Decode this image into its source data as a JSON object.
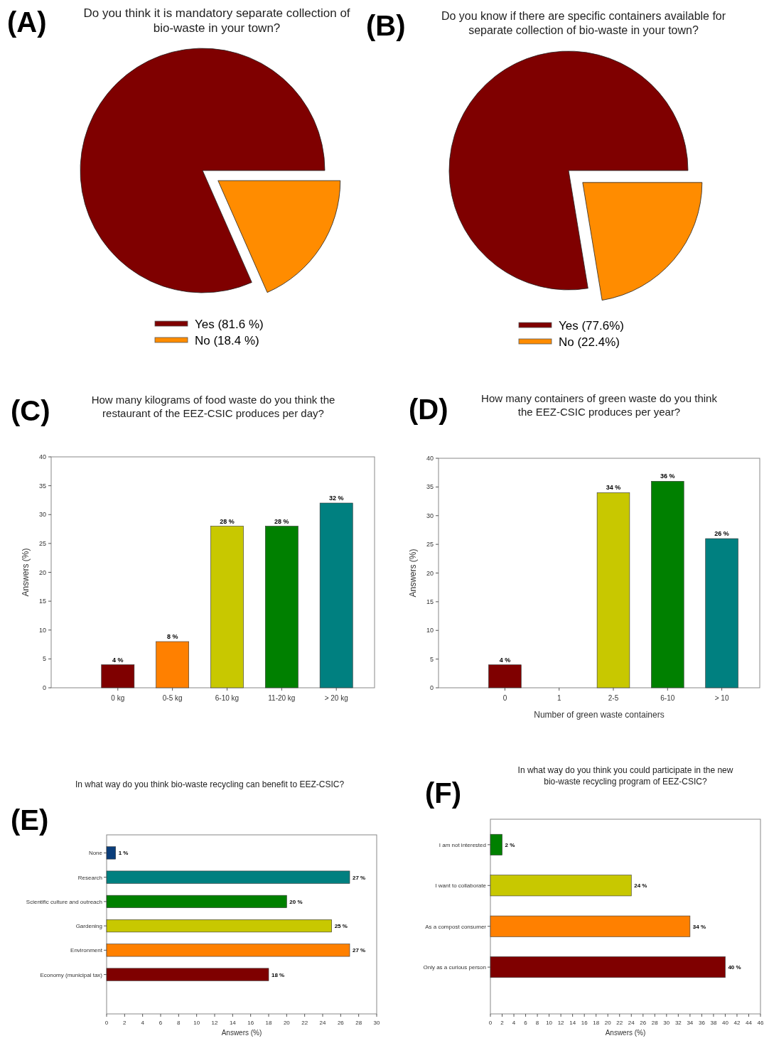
{
  "chart_data": [
    {
      "type": "pie",
      "title": "Do you think it is mandatory separate collection of bio-waste in your town?",
      "annotations": [
        "(A)"
      ],
      "categories": [
        "Yes (81.6 %)",
        "No (18.4 %)"
      ],
      "values": [
        81.6,
        18.4
      ],
      "colors": [
        "#7f0000",
        "#ff8c00"
      ],
      "legend": "bottom"
    },
    {
      "type": "pie",
      "title": "Do you know if there are specific containers available for separate collection of bio-waste in your town?",
      "annotations": [
        "(B)"
      ],
      "categories": [
        "Yes (77.6%)",
        "No (22.4%)"
      ],
      "values": [
        77.6,
        22.4
      ],
      "colors": [
        "#7f0000",
        "#ff8c00"
      ],
      "legend": "bottom"
    },
    {
      "type": "bar",
      "title": "How many kilograms of food waste do you think the restaurant of the EEZ-CSIC produces per day?",
      "annotations": [
        "(C)"
      ],
      "ylabel": "Answers (%)",
      "categories": [
        "0 kg",
        "0-5 kg",
        "6-10 kg",
        "11-20 kg",
        "> 20 kg"
      ],
      "values": [
        4,
        8,
        28,
        28,
        32
      ],
      "colors": [
        "#7f0000",
        "#ff8000",
        "#c8c800",
        "#008000",
        "#008080"
      ],
      "value_labels": [
        "4 %",
        "8 %",
        "28 %",
        "28 %",
        "32 %"
      ],
      "ylim": [
        0,
        40
      ],
      "yticks": [
        0,
        5,
        10,
        15,
        20,
        25,
        30,
        35,
        40
      ]
    },
    {
      "type": "bar",
      "title": "How many containers of green waste do you think the EEZ-CSIC produces per year?",
      "annotations": [
        "(D)"
      ],
      "xlabel": "Number of green waste containers",
      "ylabel": "Answers (%)",
      "categories": [
        "0",
        "1",
        "2-5",
        "6-10",
        "> 10"
      ],
      "values": [
        4,
        null,
        34,
        36,
        26
      ],
      "colors": [
        "#7f0000",
        null,
        "#c8c800",
        "#008000",
        "#008080"
      ],
      "value_labels": [
        "4 %",
        null,
        "34 %",
        "36 %",
        "26 %"
      ],
      "ylim": [
        0,
        40
      ],
      "yticks": [
        0,
        5,
        10,
        15,
        20,
        25,
        30,
        35,
        40
      ]
    },
    {
      "type": "bar",
      "orientation": "horizontal",
      "title": "In what way do you think bio-waste recycling can benefit to EEZ-CSIC?",
      "annotations": [
        "(E)"
      ],
      "xlabel": "Answers (%)",
      "categories": [
        "None",
        "Research",
        "Scientific culture and outreach",
        "Gardening",
        "Environment",
        "Economy (municipal tax)"
      ],
      "values": [
        1,
        27,
        20,
        25,
        27,
        18
      ],
      "colors": [
        "#0a3d7a",
        "#008080",
        "#008000",
        "#c8c800",
        "#ff8000",
        "#7f0000"
      ],
      "value_labels": [
        "1 %",
        "27 %",
        "20 %",
        "25 %",
        "27 %",
        "18 %"
      ],
      "xlim": [
        0,
        30
      ],
      "xticks": [
        0,
        2,
        4,
        6,
        8,
        10,
        12,
        14,
        16,
        18,
        20,
        22,
        24,
        26,
        28,
        30
      ]
    },
    {
      "type": "bar",
      "orientation": "horizontal",
      "title": "In what way do you think you could participate in the new bio-waste recycling program of EEZ-CSIC?",
      "annotations": [
        "(F)"
      ],
      "xlabel": "Answers (%)",
      "categories": [
        "I am not interested",
        "I want to collaborate",
        "As a compost consumer",
        "Only as a curious person"
      ],
      "values": [
        2,
        24,
        34,
        40
      ],
      "colors": [
        "#008000",
        "#c8c800",
        "#ff8000",
        "#7f0000"
      ],
      "value_labels": [
        "2 %",
        "24 %",
        "34 %",
        "40 %"
      ],
      "xlim": [
        0,
        46
      ],
      "xticks": [
        0,
        2,
        4,
        6,
        8,
        10,
        12,
        14,
        16,
        18,
        20,
        22,
        24,
        26,
        28,
        30,
        32,
        34,
        36,
        38,
        40,
        42,
        44,
        46
      ]
    }
  ]
}
